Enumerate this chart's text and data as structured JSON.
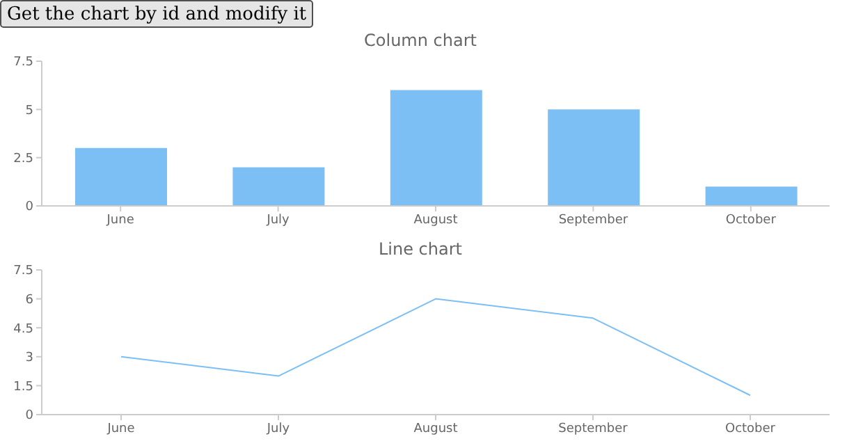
{
  "chart_data": [
    {
      "type": "other",
      "annotations": [
        "Get the chart by id and modify it"
      ]
    },
    {
      "type": "bar",
      "title": "Column chart",
      "categories": [
        "June",
        "July",
        "August",
        "September",
        "October"
      ],
      "values": [
        3,
        2,
        6,
        5,
        1
      ],
      "color": "#7cbff5",
      "ylim": [
        0,
        7.5
      ],
      "yticks": [
        0,
        2.5,
        5,
        7.5
      ],
      "grid": false,
      "legend": false
    },
    {
      "type": "line",
      "title": "Line chart",
      "categories": [
        "June",
        "July",
        "August",
        "September",
        "October"
      ],
      "values": [
        3,
        2,
        6,
        5,
        1
      ],
      "color": "#7cbff5",
      "ylim": [
        0,
        7.5
      ],
      "yticks": [
        0,
        1.5,
        3,
        4.5,
        6,
        7.5
      ],
      "grid": false,
      "legend": false,
      "marker": "none"
    }
  ]
}
